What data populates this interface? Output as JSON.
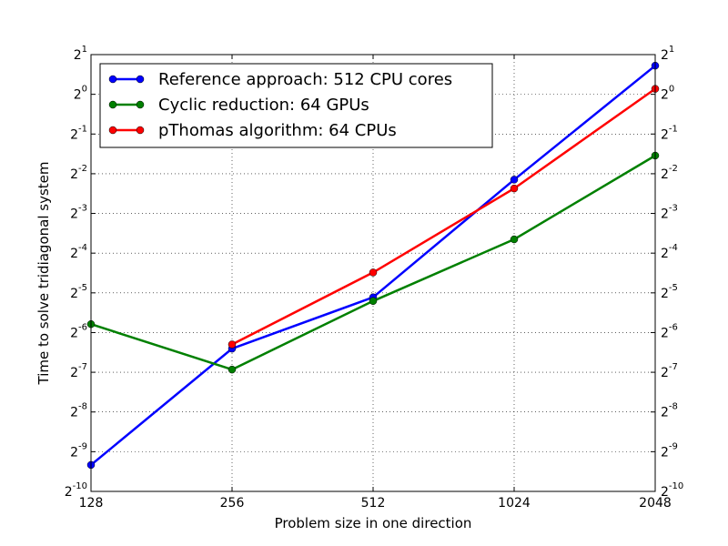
{
  "chart_data": {
    "type": "line",
    "xlabel": "Problem size in one direction",
    "ylabel": "Time to solve tridiagonal system",
    "x_scale": "log2",
    "y_scale": "log2",
    "x_ticks": [
      "128",
      "256",
      "512",
      "1024",
      "2048"
    ],
    "y_tick_exponents": [
      "-10",
      "-9",
      "-8",
      "-7",
      "-6",
      "-5",
      "-4",
      "-3",
      "-2",
      "-1",
      "0",
      "1"
    ],
    "y_tick_base": "2",
    "xlim": [
      128,
      2048
    ],
    "ylim": [
      0.0009765625,
      2
    ],
    "grid": true,
    "legend_position": "top-left",
    "series": [
      {
        "name": "Reference approach: 512 CPU cores",
        "color": "#0000ff",
        "x": [
          128,
          256,
          512,
          1024,
          2048
        ],
        "y": [
          0.00155,
          0.0118,
          0.0289,
          0.2255,
          1.648
        ]
      },
      {
        "name": "Cyclic reduction: 64 GPUs",
        "color": "#008000",
        "x": [
          128,
          256,
          512,
          1024,
          2048
        ],
        "y": [
          0.0181,
          0.00819,
          0.0271,
          0.0795,
          0.3431
        ]
      },
      {
        "name": "pThomas algorithm: 64 CPUs",
        "color": "#ff0000",
        "x": [
          256,
          512,
          1024,
          2048
        ],
        "y": [
          0.0127,
          0.0446,
          0.1932,
          1.1
        ]
      }
    ]
  }
}
